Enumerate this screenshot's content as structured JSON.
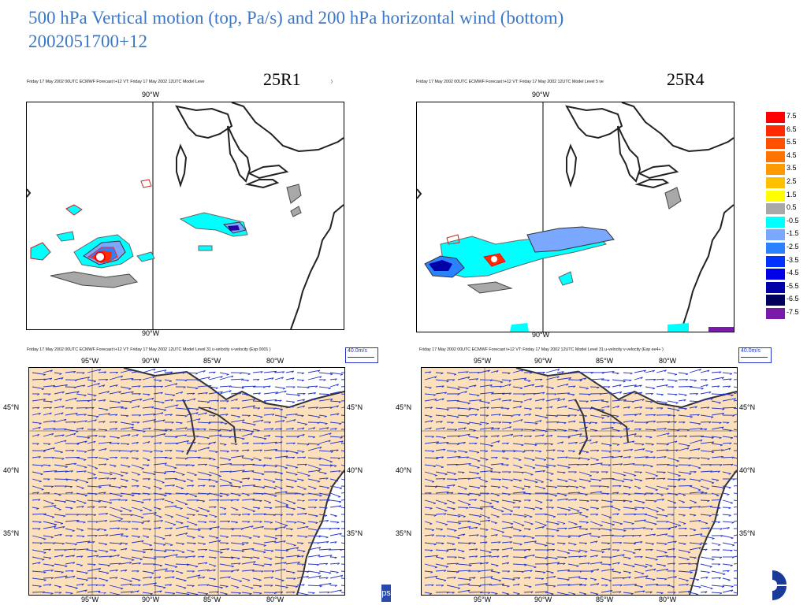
{
  "title_line1": "500 hPa Vertical motion (top, Pa/s) and 200 hPa horizontal wind (bottom)",
  "title_line2": "2002051700+12",
  "run_left": "25R1",
  "run_right": "25R4",
  "top_left_header": "Friday 17 May 2002 00UTC ECMWF Forecast t+12 VT: Friday 17 May 2002 12UTC Model Leve",
  "top_left_header_tail": ")",
  "top_right_header": "Friday 17 May 2002 00UTC ECMWF Forecast t+12 VT: Friday 17 May 2002 12UTC Model Level 5 ve",
  "bot_left_header": "Friday 17 May 2002 00UTC ECMWF Forecast t+12 VT: Friday 17 May 2002 12UTC Model Level 31 u-velocity v-velocity (Exp 0001 )",
  "bot_right_header": "Friday 17 May 2002 00UTC ECMWF Forecast t+12 VT: Friday 17 May 2002 12UTC Model Level 31 u-velocity v-velocity (Exp ee4+ )",
  "ref_vector": "40.0m/s",
  "top_lon_label": "90°W",
  "lon_labels": [
    "95°W",
    "90°W",
    "85°W",
    "80°W"
  ],
  "lat_labels": [
    "45°N",
    "40°N",
    "35°N"
  ],
  "stray_text": "ps",
  "legend": [
    {
      "label": "7.5",
      "color": "#ff0000"
    },
    {
      "label": "6.5",
      "color": "#ff2a00"
    },
    {
      "label": "5.5",
      "color": "#ff5000"
    },
    {
      "label": "4.5",
      "color": "#ff7400"
    },
    {
      "label": "3.5",
      "color": "#ff9a00"
    },
    {
      "label": "2.5",
      "color": "#ffc000"
    },
    {
      "label": "1.5",
      "color": "#ffff00"
    },
    {
      "label": "0.5",
      "color": "#a8a8a8"
    },
    {
      "label": "-0.5",
      "color": "#00ffff"
    },
    {
      "label": "-1.5",
      "color": "#7aa8ff"
    },
    {
      "label": "-2.5",
      "color": "#2a82ff"
    },
    {
      "label": "-3.5",
      "color": "#0032ff"
    },
    {
      "label": "-4.5",
      "color": "#0000e8"
    },
    {
      "label": "-5.5",
      "color": "#0000a8"
    },
    {
      "label": "-6.5",
      "color": "#00005a"
    },
    {
      "label": "-7.5",
      "color": "#7a1aa8"
    }
  ],
  "colors": {
    "title": "#3b78c8",
    "wind": "#2233cc",
    "land_fill": "#fce0bc"
  }
}
